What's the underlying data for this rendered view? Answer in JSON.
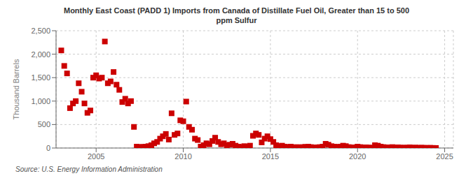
{
  "chart_data": {
    "type": "scatter",
    "title": "Monthly East Coast (PADD 1) Imports from Canada of Distillate Fuel Oil, Greater than 15 to 500\nppm Sulfur",
    "ylabel": "Thousand Barrels",
    "annotations": [
      "Source: U.S. Energy Information Administration"
    ],
    "color": "#cc0000",
    "marker": "square",
    "grid": true,
    "xlim": [
      2002.7,
      2025.5
    ],
    "ylim": [
      0,
      2500
    ],
    "xticks": [
      2005,
      2010,
      2015,
      2020,
      2025
    ],
    "yticks": [
      0,
      500,
      {
        "value": 1000,
        "label": "1,000"
      },
      {
        "value": 1500,
        "label": "1,500"
      },
      {
        "value": 2000,
        "label": "2,000"
      },
      {
        "value": 2500,
        "label": "2,500"
      }
    ],
    "x": [
      2003.0,
      2003.17,
      2003.33,
      2003.5,
      2003.67,
      2003.83,
      2004.0,
      2004.17,
      2004.33,
      2004.5,
      2004.67,
      2004.83,
      2005.0,
      2005.17,
      2005.33,
      2005.5,
      2005.67,
      2005.83,
      2006.0,
      2006.17,
      2006.33,
      2006.5,
      2006.67,
      2006.83,
      2007.0,
      2007.17,
      2007.33,
      2007.5,
      2007.67,
      2007.83,
      2008.0,
      2008.17,
      2008.33,
      2008.5,
      2008.67,
      2008.83,
      2009.0,
      2009.17,
      2009.33,
      2009.5,
      2009.67,
      2009.83,
      2010.0,
      2010.17,
      2010.33,
      2010.5,
      2010.67,
      2010.83,
      2011.0,
      2011.17,
      2011.33,
      2011.5,
      2011.67,
      2011.83,
      2012.0,
      2012.17,
      2012.33,
      2012.5,
      2012.67,
      2012.83,
      2013.0,
      2013.17,
      2013.33,
      2013.5,
      2013.67,
      2013.83,
      2014.0,
      2014.17,
      2014.33,
      2014.5,
      2014.67,
      2014.83,
      2015.0,
      2015.17,
      2015.33,
      2015.5,
      2015.67,
      2015.83,
      2016.0,
      2016.17,
      2016.33,
      2016.5,
      2016.67,
      2016.83,
      2017.0,
      2017.17,
      2017.33,
      2017.5,
      2017.67,
      2017.83,
      2018.0,
      2018.17,
      2018.33,
      2018.5,
      2018.67,
      2018.83,
      2019.0,
      2019.17,
      2019.33,
      2019.5,
      2019.67,
      2019.83,
      2020.0,
      2020.17,
      2020.33,
      2020.5,
      2020.67,
      2020.83,
      2021.0,
      2021.17,
      2021.33,
      2021.5,
      2021.67,
      2021.83,
      2022.0,
      2022.17,
      2022.33,
      2022.5,
      2022.67,
      2022.83,
      2023.0,
      2023.17,
      2023.33,
      2023.5,
      2023.67,
      2023.83,
      2024.0,
      2024.17,
      2024.33,
      2024.5
    ],
    "values": [
      2080,
      1750,
      1590,
      850,
      950,
      1000,
      1380,
      1200,
      950,
      750,
      800,
      1500,
      1550,
      1480,
      1500,
      2270,
      1380,
      1420,
      1620,
      1350,
      1240,
      980,
      1050,
      950,
      1000,
      450,
      30,
      20,
      25,
      30,
      40,
      60,
      100,
      130,
      200,
      250,
      300,
      180,
      740,
      280,
      310,
      590,
      570,
      990,
      450,
      390,
      200,
      170,
      30,
      60,
      100,
      80,
      150,
      220,
      130,
      80,
      100,
      60,
      70,
      90,
      50,
      30,
      20,
      40,
      30,
      50,
      260,
      310,
      280,
      120,
      200,
      250,
      190,
      130,
      60,
      40,
      50,
      30,
      20,
      30,
      10,
      20,
      15,
      20,
      25,
      30,
      20,
      10,
      15,
      20,
      30,
      90,
      70,
      40,
      30,
      20,
      30,
      50,
      40,
      20,
      10,
      15,
      30,
      20,
      10,
      15,
      10,
      5,
      60,
      50,
      30,
      20,
      10,
      15,
      20,
      10,
      15,
      10,
      5,
      10,
      15,
      5,
      10,
      5,
      8,
      5,
      3,
      5,
      2,
      1
    ]
  }
}
